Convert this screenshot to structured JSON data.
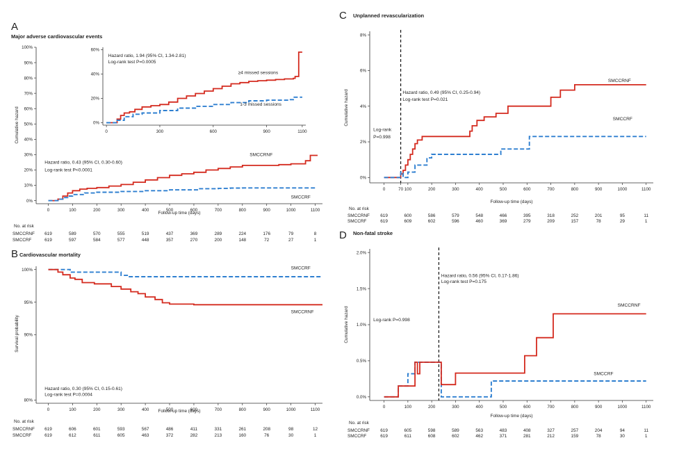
{
  "colors": {
    "red": "#d42a1e",
    "blue": "#2e7fd0",
    "axis": "#333333",
    "dashed_marker": "#111111"
  },
  "chart_data": [
    {
      "id": "A",
      "panel_label": "A",
      "title": "Major adverse cardiovascular events",
      "type": "line",
      "xlabel": "Follow-up time (days)",
      "ylabel": "Cumulative hazard",
      "xlim": [
        -50,
        1130
      ],
      "ylim": [
        -2,
        100
      ],
      "x_ticks": [
        0,
        100,
        200,
        300,
        400,
        500,
        600,
        700,
        800,
        900,
        1000,
        1100
      ],
      "y_ticks": [
        0,
        10,
        20,
        30,
        40,
        50,
        60,
        70,
        80,
        90,
        100
      ],
      "y_tick_labels": [
        "0%",
        "10%",
        "20%",
        "30%",
        "40%",
        "50%",
        "60%",
        "70%",
        "80%",
        "90%",
        "100%"
      ],
      "grid": false,
      "series": [
        {
          "name": "SMCCRNF",
          "color": "#d42a1e",
          "dash": false,
          "x": [
            0,
            40,
            60,
            80,
            100,
            130,
            160,
            200,
            250,
            300,
            350,
            400,
            450,
            500,
            550,
            600,
            650,
            700,
            750,
            800,
            850,
            900,
            950,
            1000,
            1050,
            1060,
            1080,
            1110
          ],
          "y": [
            0,
            1,
            3,
            5,
            6.5,
            7.5,
            8,
            8.5,
            9.5,
            10.5,
            12,
            13.5,
            15,
            16.5,
            17.5,
            18.5,
            20,
            21,
            22,
            23,
            23,
            23,
            23.5,
            24,
            24,
            26,
            29.5,
            29.5
          ]
        },
        {
          "name": "SMCCRF",
          "color": "#2e7fd0",
          "dash": true,
          "x": [
            0,
            40,
            60,
            80,
            100,
            150,
            200,
            300,
            400,
            500,
            600,
            620,
            700,
            750,
            800,
            1100
          ],
          "y": [
            0,
            1,
            2,
            3,
            4,
            5,
            5.5,
            6,
            6.5,
            7,
            7,
            7.8,
            8,
            8.2,
            8.3,
            8.3
          ]
        }
      ],
      "annotations": [
        {
          "text": "Hazard ratio, 0.43 (95% CI, 0.30-0.60)",
          "x": -15,
          "y": 24
        },
        {
          "text": "Log-rank test P<0.0001",
          "x": -15,
          "y": 19
        },
        {
          "text": "SMCCRNF",
          "x": 830,
          "y": 29
        },
        {
          "text": "SMCCRF",
          "x": 1000,
          "y": 1.5
        }
      ],
      "risk_table": {
        "header": "No. at risk",
        "rows": [
          {
            "name": "SMCCRNF",
            "color": "#d42a1e",
            "values": [
              "619",
              "589",
              "570",
              "555",
              "519",
              "437",
              "369",
              "289",
              "224",
              "176",
              "79",
              "8"
            ]
          },
          {
            "name": "SMCCRF",
            "color": "#2e7fd0",
            "values": [
              "619",
              "597",
              "584",
              "577",
              "448",
              "357",
              "270",
              "200",
              "148",
              "72",
              "27",
              "1"
            ]
          }
        ]
      }
    },
    {
      "id": "A-inset",
      "type": "line",
      "xlim": [
        -20,
        1120
      ],
      "ylim": [
        -2,
        62
      ],
      "x_ticks": [
        0,
        300,
        600,
        900,
        1100
      ],
      "y_ticks": [
        0,
        20,
        40,
        60
      ],
      "y_tick_labels": [
        "0%",
        "20%",
        "40%",
        "60%"
      ],
      "grid": false,
      "series": [
        {
          "name": "≥4 missed sessions",
          "color": "#d42a1e",
          "dash": false,
          "x": [
            0,
            60,
            80,
            100,
            130,
            160,
            200,
            250,
            300,
            350,
            400,
            450,
            500,
            550,
            600,
            650,
            700,
            750,
            800,
            850,
            900,
            950,
            1000,
            1050,
            1060,
            1080,
            1100
          ],
          "y": [
            0,
            3,
            6,
            8,
            9,
            11,
            13,
            14,
            15,
            17,
            20,
            22,
            24,
            26,
            28,
            30,
            32,
            33,
            34,
            34.5,
            35,
            35.5,
            36,
            36.5,
            38,
            58,
            58
          ]
        },
        {
          "name": "1-3 missed sessions",
          "color": "#2e7fd0",
          "dash": true,
          "x": [
            0,
            60,
            100,
            150,
            200,
            300,
            400,
            500,
            600,
            700,
            800,
            900,
            950,
            1000,
            1030,
            1050,
            1100
          ],
          "y": [
            0,
            2,
            5,
            7,
            8,
            10,
            12,
            13.5,
            15,
            16.5,
            18,
            18.5,
            18.5,
            18.5,
            19,
            21,
            21
          ]
        }
      ],
      "annotations": [
        {
          "text": "Hazard ratio, 1.94 (95% CI, 1.34-2.81)",
          "x": 10,
          "y": 54
        },
        {
          "text": "Log-rank test P=0.0005",
          "x": 10,
          "y": 49
        },
        {
          "text": "≥4 missed sessions",
          "x": 740,
          "y": 40
        },
        {
          "text": "1-3 missed sessions",
          "x": 750,
          "y": 14
        }
      ]
    },
    {
      "id": "B",
      "panel_label": "B",
      "title": "Cardiovascular mortality",
      "type": "line",
      "xlabel": "Follow-up time (days)",
      "ylabel": "Survival probability",
      "xlim": [
        -50,
        1130
      ],
      "ylim": [
        79.5,
        100.5
      ],
      "x_ticks": [
        0,
        100,
        200,
        300,
        400,
        500,
        600,
        700,
        800,
        900,
        1000,
        1100
      ],
      "y_ticks": [
        80,
        90,
        95,
        100
      ],
      "y_tick_labels": [
        "80%",
        "90%",
        "95%",
        "100%"
      ],
      "grid": false,
      "series": [
        {
          "name": "SMCCRF",
          "color": "#2e7fd0",
          "dash": true,
          "x": [
            0,
            60,
            90,
            280,
            300,
            330,
            1130
          ],
          "y": [
            100,
            100,
            99.6,
            99.6,
            99.1,
            98.9,
            98.9
          ]
        },
        {
          "name": "SMCCRNF",
          "color": "#d42a1e",
          "dash": false,
          "x": [
            0,
            40,
            60,
            90,
            110,
            140,
            190,
            260,
            300,
            340,
            370,
            400,
            440,
            470,
            500,
            600,
            1130
          ],
          "y": [
            100,
            99.6,
            99.2,
            98.7,
            98.5,
            98,
            97.8,
            97.4,
            97,
            96.6,
            96.3,
            95.8,
            95.4,
            94.9,
            94.7,
            94.6,
            94.6
          ]
        }
      ],
      "annotations": [
        {
          "text": "SMCCRF",
          "x": 1000,
          "y": 100
        },
        {
          "text": "SMCCRNF",
          "x": 1000,
          "y": 93.3
        },
        {
          "text": "Hazard ratio, 0.30 (95% CI, 0.15-0.61)",
          "x": -15,
          "y": 81.5
        },
        {
          "text": "Log-rank test P=0.0004",
          "x": -15,
          "y": 80.6
        }
      ],
      "risk_table": {
        "header": "No. at risk",
        "rows": [
          {
            "name": "SMCCRNF",
            "color": "#d42a1e",
            "values": [
              "619",
              "606",
              "601",
              "593",
              "567",
              "486",
              "411",
              "331",
              "261",
              "208",
              "98",
              "12"
            ]
          },
          {
            "name": "SMCCRF",
            "color": "#2e7fd0",
            "values": [
              "619",
              "612",
              "611",
              "605",
              "463",
              "372",
              "282",
              "213",
              "160",
              "76",
              "30",
              "1"
            ]
          }
        ]
      }
    },
    {
      "id": "C",
      "panel_label": "C",
      "title": "Unplanned revascularization",
      "type": "line",
      "xlabel": "Follow-up time (days)",
      "ylabel": "Cumulative hazard",
      "xlim": [
        -60,
        1130
      ],
      "ylim": [
        -0.3,
        8.2
      ],
      "x_ticks": [
        0,
        70,
        100,
        200,
        300,
        400,
        500,
        600,
        700,
        800,
        900,
        1000,
        1100
      ],
      "y_ticks": [
        0,
        2,
        4,
        6,
        8
      ],
      "y_tick_labels": [
        "0%",
        "2%",
        "4%",
        "6%",
        "8%"
      ],
      "grid": false,
      "marker_x": 70,
      "series": [
        {
          "name": "SMCCRNF",
          "color": "#d42a1e",
          "dash": false,
          "x": [
            0,
            60,
            70,
            80,
            90,
            100,
            110,
            120,
            130,
            140,
            160,
            200,
            360,
            370,
            390,
            400,
            420,
            450,
            470,
            480,
            500,
            520,
            680,
            700,
            740,
            780,
            800,
            1100
          ],
          "y": [
            0,
            0,
            0.2,
            0.4,
            0.7,
            1,
            1.3,
            1.6,
            1.9,
            2.1,
            2.3,
            2.3,
            2.6,
            2.9,
            3.2,
            3.2,
            3.4,
            3.4,
            3.6,
            3.6,
            3.6,
            4,
            4,
            4.5,
            4.9,
            4.9,
            5.2,
            5.2
          ]
        },
        {
          "name": "SMCCRF",
          "color": "#2e7fd0",
          "dash": true,
          "x": [
            0,
            60,
            70,
            80,
            100,
            130,
            180,
            200,
            480,
            490,
            600,
            610,
            1100
          ],
          "y": [
            0,
            0,
            0.3,
            0,
            0.3,
            0.7,
            1.1,
            1.3,
            1.3,
            1.6,
            1.6,
            2.3,
            2.3
          ]
        }
      ],
      "annotations": [
        {
          "text": "Log-rank",
          "x": -45,
          "y": 2.6
        },
        {
          "text": "P=0.998",
          "x": -45,
          "y": 2.2
        },
        {
          "text": "Hazard ratio, 0.49 (95% CI, 0.25-0.94)",
          "x": 78,
          "y": 4.7
        },
        {
          "text": "Log-rank test P=0.021",
          "x": 78,
          "y": 4.3
        },
        {
          "text": "SMCCRNF",
          "x": 940,
          "y": 5.35
        },
        {
          "text": "SMCCRF",
          "x": 960,
          "y": 3.2
        }
      ],
      "risk_table": {
        "header": "No. at risk",
        "rows": [
          {
            "name": "SMCCRNF",
            "color": "#d42a1e",
            "values": [
              "619",
              "600",
              "586",
              "579",
              "548",
              "466",
              "395",
              "318",
              "252",
              "201",
              "95",
              "11"
            ]
          },
          {
            "name": "SMCCRF",
            "color": "#2e7fd0",
            "values": [
              "619",
              "609",
              "602",
              "596",
              "460",
              "369",
              "279",
              "209",
              "157",
              "78",
              "29",
              "1"
            ]
          }
        ]
      }
    },
    {
      "id": "D",
      "panel_label": "D",
      "title": "Non-fatal stroke",
      "type": "line",
      "xlabel": "Follow-up time (days)",
      "ylabel": "Cumulative hazard",
      "xlim": [
        -60,
        1130
      ],
      "ylim": [
        -0.05,
        2.05
      ],
      "x_ticks": [
        0,
        100,
        200,
        300,
        400,
        500,
        600,
        700,
        800,
        900,
        1000,
        1100
      ],
      "y_ticks": [
        0,
        0.5,
        1,
        1.5,
        2
      ],
      "y_tick_labels": [
        "0.0%",
        "0.5%",
        "1.0%",
        "1.5%",
        "2.0%"
      ],
      "grid": false,
      "marker_x": 230,
      "series": [
        {
          "name": "SMCCRF",
          "color": "#2e7fd0",
          "dash": true,
          "x": [
            0,
            60,
            80,
            100,
            120,
            130,
            230,
            240,
            430,
            450,
            1100
          ],
          "y": [
            0,
            0.15,
            0.15,
            0.32,
            0.32,
            0.48,
            0.48,
            0,
            0,
            0.22,
            0.22
          ]
        },
        {
          "name": "SMCCRNF",
          "color": "#d42a1e",
          "dash": false,
          "x": [
            0,
            60,
            120,
            130,
            140,
            150,
            230,
            240,
            300,
            590,
            640,
            710,
            1100
          ],
          "y": [
            0,
            0.15,
            0.15,
            0.48,
            0.32,
            0.48,
            0.48,
            0.17,
            0.33,
            0.57,
            0.82,
            1.15,
            1.15
          ]
        }
      ],
      "annotations": [
        {
          "text": "Log-rank P=0.998",
          "x": -45,
          "y": 1.05
        },
        {
          "text": "Hazard ratio, 0.56 (95% CI, 0.17-1.86)",
          "x": 240,
          "y": 1.66
        },
        {
          "text": "Log-rank test P=0.175",
          "x": 240,
          "y": 1.58
        },
        {
          "text": "SMCCRNF",
          "x": 980,
          "y": 1.25
        },
        {
          "text": "SMCCRF",
          "x": 880,
          "y": 0.3
        }
      ],
      "risk_table": {
        "header": "No. at risk",
        "rows": [
          {
            "name": "SMCCRNF",
            "color": "#d42a1e",
            "values": [
              "619",
              "605",
              "598",
              "589",
              "563",
              "483",
              "408",
              "327",
              "257",
              "204",
              "94",
              "11"
            ]
          },
          {
            "name": "SMCCRF",
            "color": "#2e7fd0",
            "values": [
              "619",
              "611",
              "608",
              "602",
              "462",
              "371",
              "281",
              "212",
              "159",
              "78",
              "30",
              "1"
            ]
          }
        ]
      }
    }
  ]
}
